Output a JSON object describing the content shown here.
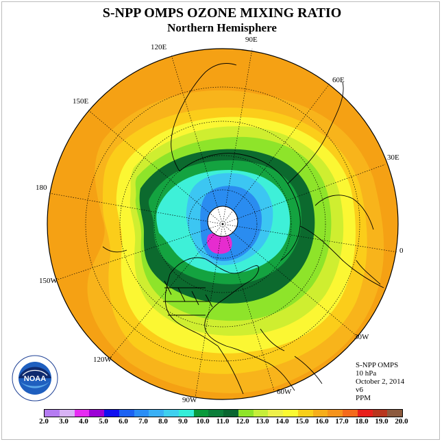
{
  "title": "S-NPP OMPS OZONE MIXING RATIO",
  "subtitle": "Northern Hemisphere",
  "longitude_labels": {
    "lon_90e": "90E",
    "lon_60e": "60E",
    "lon_30e": "30E",
    "lon_0": "0",
    "lon_30w": "30W",
    "lon_60w": "60W",
    "lon_90w": "90W",
    "lon_120w": "120W",
    "lon_150w": "150W",
    "lon_180": "180",
    "lon_150e": "150E",
    "lon_120e": "120E"
  },
  "info": {
    "instrument": "S-NPP OMPS",
    "level": "10 hPa",
    "date": "October 2, 2014",
    "version": "v6",
    "units": "PPM"
  },
  "logo": {
    "text": "NOAA",
    "ring_text": "NATIONAL OCEANIC AND ATMOSPHERIC ADMINISTRATION · U.S. DEPARTMENT OF COMMERCE"
  },
  "colorbar": {
    "colors": [
      "#b57cf2",
      "#d8b3f5",
      "#e62cf2",
      "#9c00d6",
      "#1010f0",
      "#1c62f2",
      "#2b8ef5",
      "#3ab0f5",
      "#3fd0ef",
      "#34eed8",
      "#0a9a3c",
      "#0c7e3a",
      "#0a6630",
      "#8ee42a",
      "#c6ee3a",
      "#eef04a",
      "#fafa32",
      "#f8cf1a",
      "#f6ae1b",
      "#f5931c",
      "#f46a1c",
      "#e8201c",
      "#b8361e",
      "#8c5a3e"
    ],
    "tick_labels": [
      "2.0",
      "3.0",
      "4.0",
      "5.0",
      "6.0",
      "7.0",
      "8.0",
      "9.0",
      "10.0",
      "11.0",
      "12.0",
      "13.0",
      "14.0",
      "15.0",
      "16.0",
      "17.0",
      "18.0",
      "19.0",
      "20.0"
    ]
  },
  "map_colors": {
    "ring_outer": "#f5a114",
    "ring_orange2": "#f8b41b",
    "ring_yellow_orange": "#fbcd1a",
    "ring_yellow": "#fbf733",
    "ring_lightgreen": "#cfee30",
    "ring_green": "#8ee42a",
    "ring_darkgreen": "#0c6a2e",
    "ring_green2": "#14a340",
    "ring_cyan": "#3ef0d8",
    "ring_lightblue": "#3cc6f2",
    "ring_blue": "#2a8cf0",
    "ring_magenta": "#e62ccf",
    "pole_hole": "#ffffff"
  }
}
